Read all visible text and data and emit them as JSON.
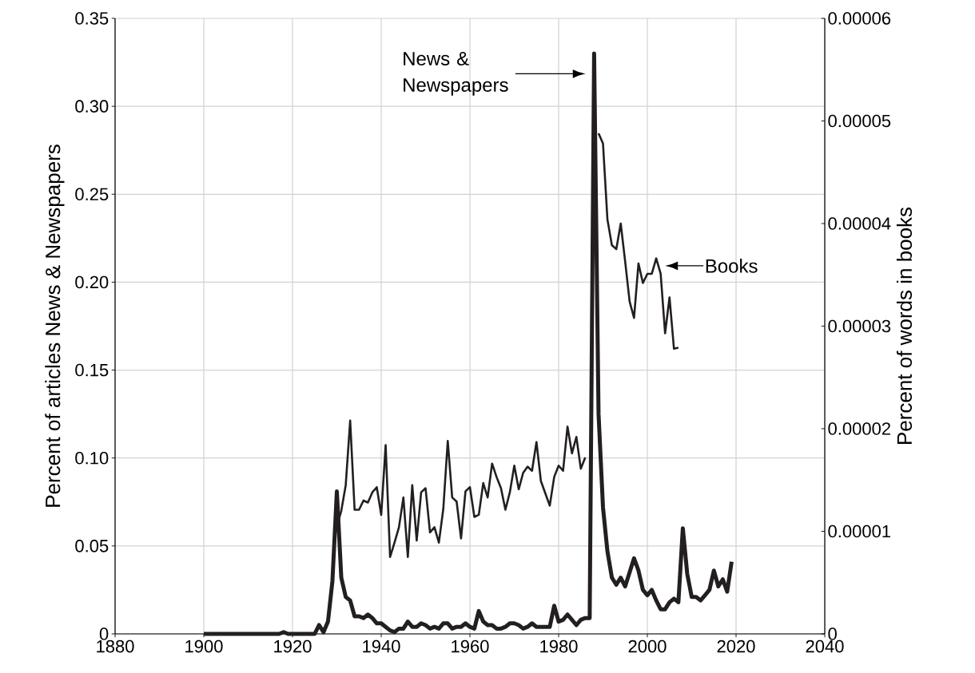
{
  "chart_data": {
    "type": "line",
    "ylabel": "Percent of articles News & Newspapers",
    "y2label": "Percent of words in books",
    "xlim": [
      1880,
      2040
    ],
    "xticks": [
      1880,
      1900,
      1920,
      1940,
      1960,
      1980,
      2000,
      2020,
      2040
    ],
    "ylim": [
      0,
      0.35
    ],
    "yticks": [
      0,
      0.05,
      {
        "value": 0.1,
        "label": "0.10"
      },
      0.15,
      {
        "value": 0.2,
        "label": "0.20"
      },
      0.25,
      {
        "value": 0.3,
        "label": "0.30"
      },
      0.35
    ],
    "y2lim": [
      0,
      6e-05
    ],
    "y2ticks": [
      0,
      {
        "value": 1e-05,
        "label": "0.00001"
      },
      {
        "value": 2e-05,
        "label": "0.00002"
      },
      {
        "value": 3e-05,
        "label": "0.00003"
      },
      {
        "value": 4e-05,
        "label": "0.00004"
      },
      {
        "value": 5e-05,
        "label": "0.00005"
      },
      {
        "value": 6e-05,
        "label": "0.00006"
      }
    ],
    "grid": true,
    "x": [
      1900,
      1901,
      1902,
      1903,
      1904,
      1905,
      1906,
      1907,
      1908,
      1909,
      1910,
      1911,
      1912,
      1913,
      1914,
      1915,
      1916,
      1917,
      1918,
      1919,
      1920,
      1921,
      1922,
      1923,
      1924,
      1925,
      1926,
      1927,
      1928,
      1929,
      1930,
      1931,
      1932,
      1933,
      1934,
      1935,
      1936,
      1937,
      1938,
      1939,
      1940,
      1941,
      1942,
      1943,
      1944,
      1945,
      1946,
      1947,
      1948,
      1949,
      1950,
      1951,
      1952,
      1953,
      1954,
      1955,
      1956,
      1957,
      1958,
      1959,
      1960,
      1961,
      1962,
      1963,
      1964,
      1965,
      1966,
      1967,
      1968,
      1969,
      1970,
      1971,
      1972,
      1973,
      1974,
      1975,
      1976,
      1977,
      1978,
      1979,
      1980,
      1981,
      1982,
      1983,
      1984,
      1985,
      1986,
      1987,
      1988,
      1989,
      1990,
      1991,
      1992,
      1993,
      1994,
      1995,
      1996,
      1997,
      1998,
      1999,
      2000,
      2001,
      2002,
      2003,
      2004,
      2005,
      2006,
      2007,
      2008,
      2009,
      2010,
      2011,
      2012,
      2013,
      2014,
      2015,
      2016,
      2017,
      2018,
      2019
    ],
    "series": [
      {
        "color": "#231f20",
        "values": [
          0,
          0,
          0,
          0,
          0,
          0,
          0,
          0,
          0,
          0,
          0,
          0,
          0,
          0,
          0,
          0,
          0,
          0,
          0.001,
          0,
          0,
          0,
          0,
          0,
          0,
          0,
          0.005,
          0.001,
          0.007,
          0.03,
          0.081,
          0.032,
          0.021,
          0.019,
          0.01,
          0.01,
          0.009,
          0.011,
          0.009,
          0.006,
          0.006,
          0.004,
          0.002,
          0.001,
          0.003,
          0.003,
          0.007,
          0.004,
          0.004,
          0.006,
          0.005,
          0.003,
          0.004,
          0.003,
          0.006,
          0.006,
          0.003,
          0.004,
          0.004,
          0.006,
          0.004,
          0.003,
          0.013,
          0.007,
          0.005,
          0.005,
          0.003,
          0.003,
          0.004,
          0.006,
          0.006,
          0.005,
          0.003,
          0.004,
          0.006,
          0.004,
          0.004,
          0.004,
          0.004,
          0.016,
          0.007,
          0.008,
          0.011,
          0.008,
          0.005,
          0.008,
          0.009,
          0.009,
          0.33,
          0.125,
          0.072,
          0.047,
          0.032,
          0.028,
          0.032,
          0.027,
          0.035,
          0.043,
          0.036,
          0.025,
          0.022,
          0.025,
          0.019,
          0.014,
          0.014,
          0.018,
          0.02,
          0.018,
          0.06,
          0.034,
          0.021,
          0.021,
          0.019,
          0.022,
          0.025,
          0.036,
          0.027,
          0.031,
          0.024,
          0.041
        ]
      },
      {
        "color": "#231f20",
        "axis": "y2",
        "x": [
          1930,
          1931,
          1932,
          1933,
          1934,
          1935,
          1936,
          1937,
          1938,
          1939,
          1940,
          1941,
          1942,
          1943,
          1944,
          1945,
          1946,
          1947,
          1948,
          1949,
          1950,
          1951,
          1952,
          1953,
          1954,
          1955,
          1956,
          1957,
          1958,
          1959,
          1960,
          1961,
          1962,
          1963,
          1964,
          1965,
          1966,
          1967,
          1968,
          1969,
          1970,
          1971,
          1972,
          1973,
          1974,
          1975,
          1976,
          1977,
          1978,
          1979,
          1980,
          1981,
          1982,
          1983,
          1984,
          1985,
          1986,
          1987,
          1988,
          1989,
          1990,
          1991,
          1992,
          1993,
          1994,
          1995,
          1996,
          1997,
          1998,
          1999,
          2000,
          2001,
          2002,
          2003,
          2004,
          2005,
          2006,
          2007
        ],
        "values": [
          1.05e-05,
          1.2e-05,
          1.45e-05,
          2.08e-05,
          1.21e-05,
          1.21e-05,
          1.3e-05,
          1.28e-05,
          1.38e-05,
          1.43e-05,
          1.16e-05,
          1.84e-05,
          7.5e-06,
          8.9e-06,
          1.04e-05,
          1.33e-05,
          7.5e-06,
          1.45e-05,
          9.1e-06,
          1.38e-05,
          1.42e-05,
          9.9e-06,
          1.04e-05,
          8.9e-06,
          1.22e-05,
          1.88e-05,
          1.33e-05,
          1.29e-05,
          9.3e-06,
          1.39e-05,
          1.43e-05,
          1.14e-05,
          1.16e-05,
          1.47e-05,
          1.33e-05,
          1.66e-05,
          1.53e-05,
          1.42e-05,
          1.21e-05,
          1.38e-05,
          1.64e-05,
          1.41e-05,
          1.57e-05,
          1.63e-05,
          1.59e-05,
          1.87e-05,
          1.49e-05,
          1.37e-05,
          1.25e-05,
          1.53e-05,
          1.64e-05,
          1.59e-05,
          2.02e-05,
          1.76e-05,
          1.92e-05,
          1.61e-05,
          1.72e-05,
          null,
          null,
          4.88e-05,
          4.78e-05,
          4.04e-05,
          3.79e-05,
          3.75e-05,
          4e-05,
          3.63e-05,
          3.24e-05,
          3.08e-05,
          3.61e-05,
          3.42e-05,
          3.51e-05,
          3.51e-05,
          3.66e-05,
          3.51e-05,
          2.93e-05,
          3.28e-05,
          2.78e-05,
          2.79e-05
        ]
      }
    ],
    "annotations": [
      "News & Newspapers",
      "Books"
    ]
  }
}
